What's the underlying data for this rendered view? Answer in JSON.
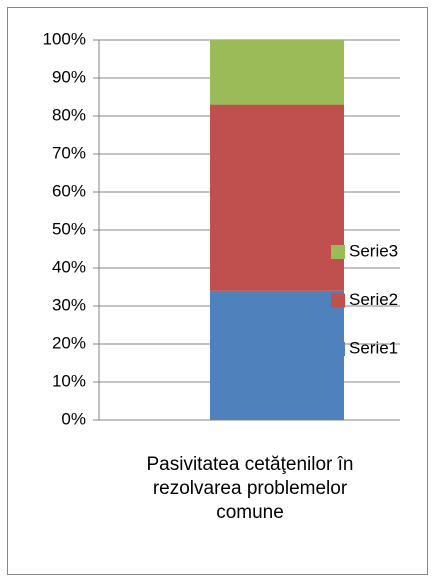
{
  "chart_data": {
    "type": "stacked_bar",
    "categories": [
      "Pasivitatea cetăţenilor în rezolvarea problemelor comune"
    ],
    "series": [
      {
        "name": "Serie1",
        "color": "#4f81bd",
        "values": [
          34
        ]
      },
      {
        "name": "Serie2",
        "color": "#c0504d",
        "values": [
          49
        ]
      },
      {
        "name": "Serie3",
        "color": "#9bbb59",
        "values": [
          17
        ]
      }
    ],
    "ylim": [
      0,
      100
    ],
    "yticks": [
      {
        "value": 0,
        "label": "0%"
      },
      {
        "value": 10,
        "label": "10%"
      },
      {
        "value": 20,
        "label": "20%"
      },
      {
        "value": 30,
        "label": "30%"
      },
      {
        "value": 40,
        "label": "40%"
      },
      {
        "value": 50,
        "label": "50%"
      },
      {
        "value": 60,
        "label": "60%"
      },
      {
        "value": 70,
        "label": "70%"
      },
      {
        "value": 80,
        "label": "80%"
      },
      {
        "value": 90,
        "label": "90%"
      },
      {
        "value": 100,
        "label": "100%"
      }
    ],
    "grid": true,
    "legend": "right"
  }
}
